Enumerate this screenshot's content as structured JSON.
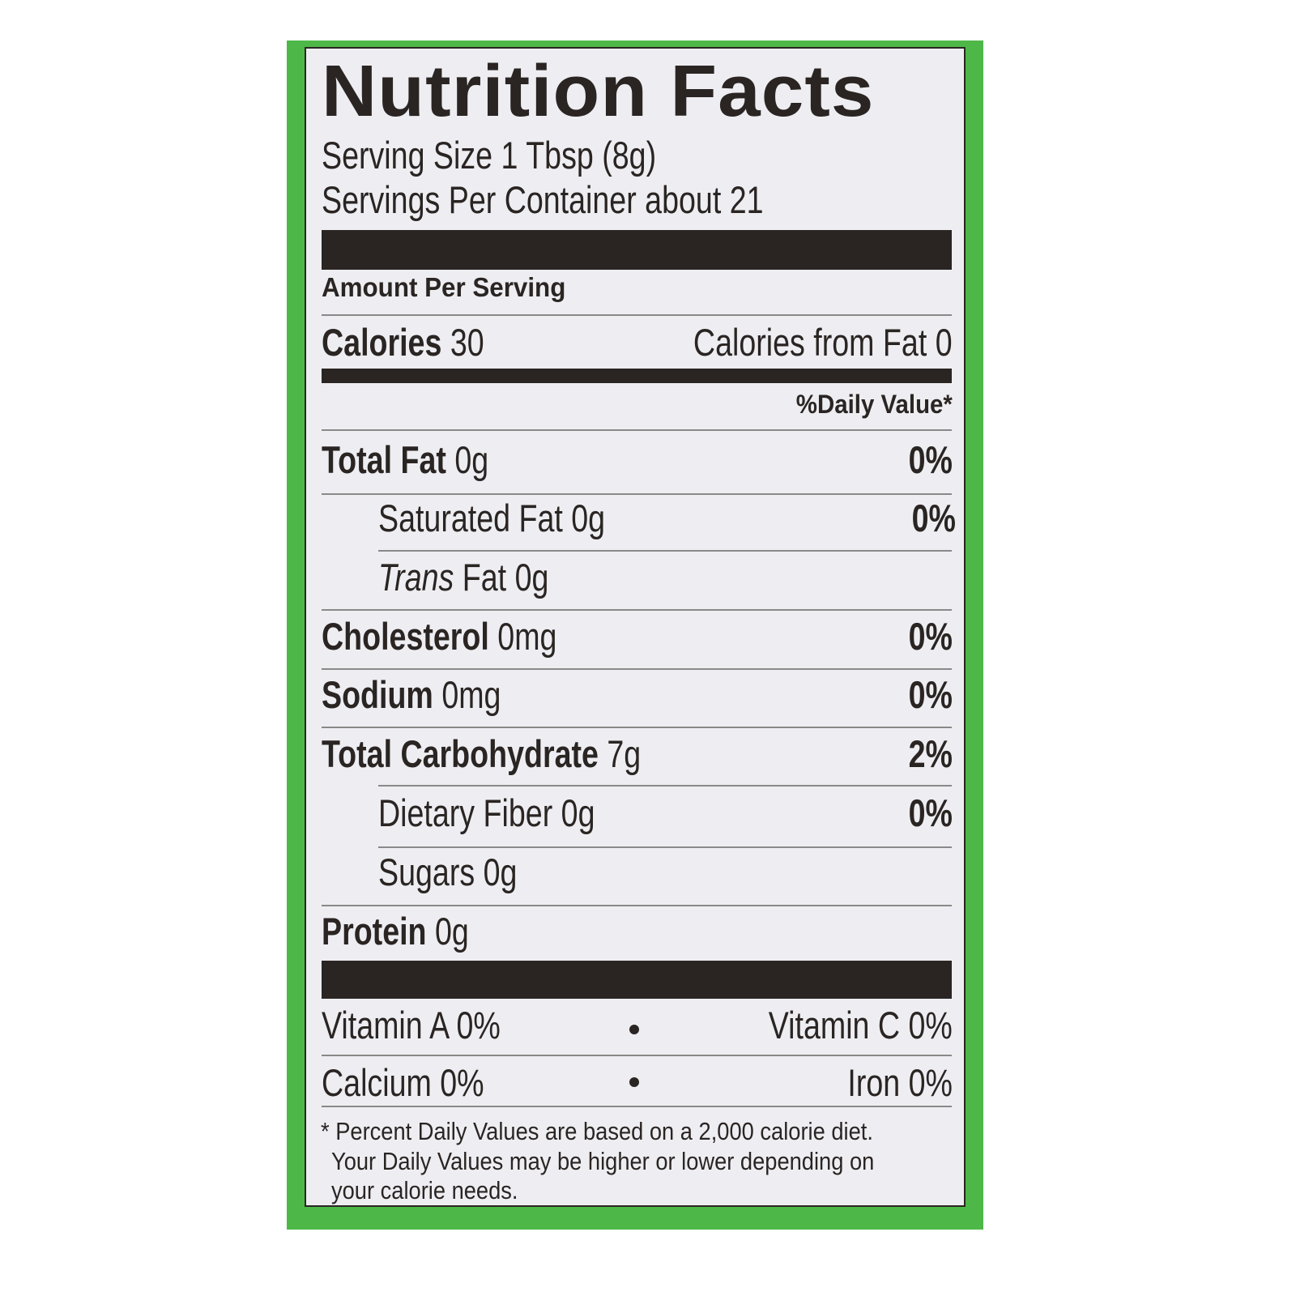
{
  "title": "Nutrition Facts",
  "serving_size": "Serving Size 1 Tbsp (8g)",
  "servings_per_container": "Servings Per Container about 21",
  "amount_per_serving": "Amount Per Serving",
  "calories": {
    "label": "Calories",
    "value": "30",
    "from_fat": "Calories from Fat 0"
  },
  "daily_value_header": "%Daily Value*",
  "nutrients": [
    {
      "label": "Total Fat",
      "amount": "0g",
      "dv": "0%"
    },
    {
      "label": "Saturated Fat",
      "amount": "0g",
      "dv": "0%"
    },
    {
      "label": "Trans",
      "label_rest": "Fat",
      "amount": "0g"
    },
    {
      "label": "Cholesterol",
      "amount": "0mg",
      "dv": "0%"
    },
    {
      "label": "Sodium",
      "amount": "0mg",
      "dv": "0%"
    },
    {
      "label": "Total Carbohydrate",
      "amount": "7g",
      "dv": "2%"
    },
    {
      "label": "Dietary Fiber",
      "amount": "0g",
      "dv": "0%"
    },
    {
      "label": "Sugars",
      "amount": "0g"
    },
    {
      "label": "Protein",
      "amount": "0g"
    }
  ],
  "vitamins": [
    {
      "left": "Vitamin A 0%",
      "right": "Vitamin C 0%"
    },
    {
      "left": "Calcium 0%",
      "right": "Iron 0%"
    }
  ],
  "footnote": [
    "* Percent Daily Values are based on a 2,000 calorie diet.",
    "Your Daily Values may be higher or lower depending on",
    "your calorie needs."
  ],
  "colors": {
    "border_green": "#4db848",
    "label_bg": "#eeeef2",
    "ink": "#2a2523"
  }
}
